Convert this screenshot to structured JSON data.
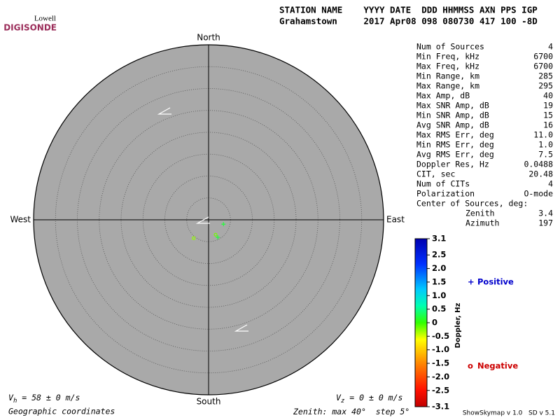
{
  "logo": {
    "top": "Lowell",
    "bottom": "DIGISONDE"
  },
  "header": {
    "labels": "STATION NAME    YYYY DATE  DDD HHMMSS AXN PPS IGP",
    "values": "Grahamstown     2017 Apr08 098 080730 417 100 -8D"
  },
  "stats": {
    "rows": [
      [
        "Num of Sources",
        "4"
      ],
      [
        "Min Freq, kHz",
        "6700"
      ],
      [
        "Max Freq, kHz",
        "6700"
      ],
      [
        "Min Range, km",
        "285"
      ],
      [
        "Max Range, km",
        "295"
      ],
      [
        "Max Amp, dB",
        "40"
      ],
      [
        "Max SNR Amp, dB",
        "19"
      ],
      [
        "Min SNR Amp, dB",
        "15"
      ],
      [
        "Avg SNR Amp, dB",
        "16"
      ],
      [
        "Max RMS Err, deg",
        "11.0"
      ],
      [
        "Min RMS Err, deg",
        "1.0"
      ],
      [
        "Avg RMS Err, deg",
        "7.5"
      ],
      [
        "Doppler Res, Hz",
        "0.0488"
      ],
      [
        "CIT, sec",
        "20.48"
      ],
      [
        "Num of CITs",
        "4"
      ],
      [
        "Polarization",
        "O-mode"
      ]
    ],
    "center_title": "Center of Sources, deg:",
    "center_rows": [
      [
        "Zenith",
        "3.4"
      ],
      [
        "Azimuth",
        "197"
      ]
    ]
  },
  "chart_data": {
    "type": "skymap",
    "compass": {
      "north": "North",
      "south": "South",
      "east": "East",
      "west": "West"
    },
    "zenith_max": 40,
    "zenith_step": 5,
    "series": [
      {
        "name": "Positive",
        "marker": "+",
        "color": "#0000cc",
        "x": [
          3.4,
          2.1
        ],
        "y": [
          -1.0,
          -4.0
        ],
        "doppler": [
          0.2,
          0.2
        ]
      },
      {
        "name": "Negative",
        "marker": "o",
        "color": "#cc0000",
        "x": [
          1.6,
          -3.4
        ],
        "y": [
          -3.4,
          -4.2
        ],
        "doppler": [
          -0.2,
          -0.3
        ]
      }
    ],
    "colorbar": {
      "label": "Doppler, Hz",
      "lim": [
        -3.1,
        3.1
      ],
      "ticks": [
        3.1,
        2.5,
        {
          "value": 2,
          "label": "2.0"
        },
        1.5,
        {
          "value": 1,
          "label": "1.0"
        },
        0.5,
        0,
        -0.5,
        {
          "value": -1,
          "label": "-1.0"
        },
        -1.5,
        {
          "value": -2,
          "label": "-2.0"
        },
        -2.5,
        -3.1
      ]
    }
  },
  "footer": {
    "vh": {
      "symbol": "V",
      "sub": "h",
      "text": " = 58 ± 0 m/s"
    },
    "vz": {
      "symbol": "V",
      "sub": "z",
      "text": " = 0 ± 0 m/s"
    },
    "coords": "Geographic coordinates",
    "zenith": {
      "prefix": "Zenith: max ",
      "max": "40°",
      "step_prefix": "  step ",
      "step": "5°"
    },
    "credits": "ShowSkymap v 1.0   SD v 5.1"
  }
}
